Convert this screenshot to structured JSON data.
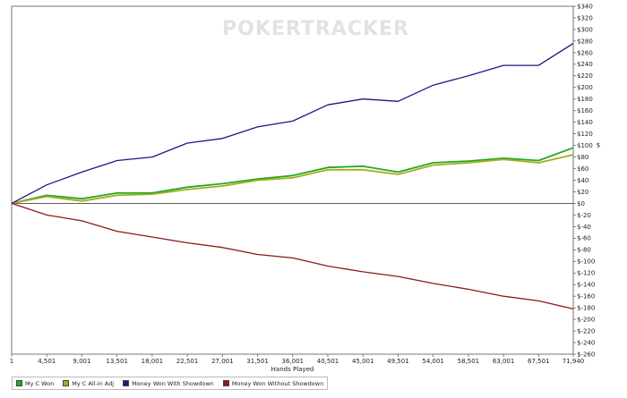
{
  "watermark": "POKERTRACKER",
  "chart_data": {
    "type": "line",
    "xlabel": "Hands Played",
    "ylabel": "$",
    "xlim": [
      1,
      71940
    ],
    "ylim": [
      -260,
      340
    ],
    "x_ticks": [
      1,
      4501,
      9001,
      13501,
      18001,
      22501,
      27001,
      31501,
      36001,
      40501,
      45001,
      49501,
      54001,
      58501,
      63001,
      67501,
      71940
    ],
    "x_tick_labels": [
      "1",
      "4,501",
      "9,001",
      "13,501",
      "18,001",
      "22,501",
      "27,001",
      "31,501",
      "36,001",
      "40,501",
      "45,001",
      "49,501",
      "54,001",
      "58,501",
      "63,001",
      "67,501",
      "71,940"
    ],
    "y_ticks": [
      340,
      320,
      300,
      280,
      260,
      240,
      220,
      200,
      180,
      160,
      140,
      120,
      100,
      80,
      60,
      40,
      20,
      0,
      -20,
      -40,
      -60,
      -80,
      -100,
      -120,
      -140,
      -160,
      -180,
      -200,
      -220,
      -240,
      -260
    ],
    "y_tick_labels": [
      "$340",
      "$320",
      "$300",
      "$280",
      "$260",
      "$240",
      "$220",
      "$200",
      "$180",
      "$160",
      "$140",
      "$120",
      "$100",
      "$80",
      "$60",
      "$40",
      "$20",
      "$0",
      "$-20",
      "$-40",
      "$-60",
      "$-80",
      "$-100",
      "$-120",
      "$-140",
      "$-160",
      "$-180",
      "$-200",
      "$-220",
      "$-240",
      "$-260"
    ],
    "grid": false,
    "legend_position": "bottom-left",
    "x": [
      1,
      4501,
      9001,
      13501,
      18001,
      22501,
      27001,
      31501,
      36001,
      40501,
      45001,
      49501,
      54001,
      58501,
      63001,
      67501,
      71940
    ],
    "series": [
      {
        "name": "My C Won",
        "color": "#22aa22",
        "values": [
          0,
          14,
          8,
          18,
          18,
          28,
          34,
          42,
          48,
          62,
          64,
          54,
          70,
          73,
          78,
          74,
          96
        ]
      },
      {
        "name": "My C All-in Adj",
        "color": "#aaaa22",
        "values": [
          0,
          12,
          4,
          14,
          16,
          24,
          30,
          40,
          44,
          58,
          58,
          50,
          66,
          70,
          76,
          70,
          84
        ]
      },
      {
        "name": "Money Won With Showdown",
        "color": "#1a1a80",
        "values": [
          0,
          32,
          54,
          74,
          80,
          104,
          112,
          132,
          142,
          170,
          180,
          176,
          204,
          220,
          238,
          238,
          276
        ]
      },
      {
        "name": "Money Won Without Showdown",
        "color": "#8b1a1a",
        "values": [
          0,
          -20,
          -30,
          -48,
          -58,
          -68,
          -76,
          -88,
          -94,
          -108,
          -118,
          -126,
          -138,
          -148,
          -160,
          -168,
          -182
        ]
      }
    ]
  }
}
